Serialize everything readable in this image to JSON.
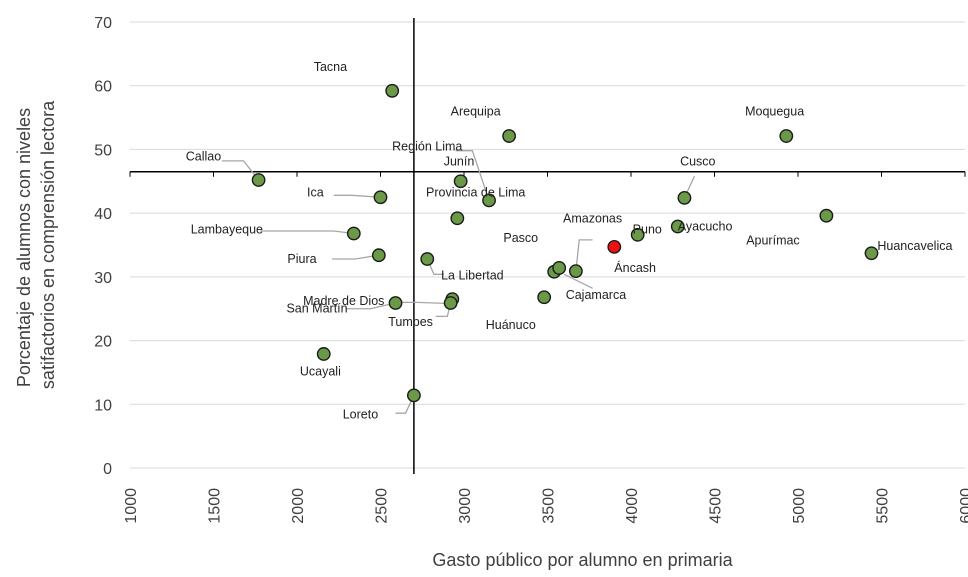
{
  "chart_data": {
    "type": "scatter",
    "xlabel": "Gasto público por alumno en primaria",
    "ylabel_lines": [
      "Porcentaje de alumnos con niveles",
      "satifactorios en comprensión lectora"
    ],
    "xlim": [
      1000,
      6000
    ],
    "ylim": [
      0,
      70
    ],
    "x_ticks": [
      "1000",
      "1500",
      "2000",
      "2500",
      "3000",
      "3500",
      "4000",
      "4500",
      "5000",
      "5500",
      "6000"
    ],
    "y_ticks": [
      "0",
      "10",
      "20",
      "30",
      "40",
      "50",
      "60",
      "70"
    ],
    "gridlines": "horizontal",
    "reference_lines": {
      "x": 2700,
      "y": 46.5
    },
    "colors": {
      "point": "#6a9a48",
      "highlight": "#ee1111",
      "outline": "#1a1a1a",
      "grid": "#d9d9d9",
      "reference": "#000000",
      "leader": "#a6a6a6"
    },
    "points": [
      {
        "label": "Tacna",
        "x": 2570,
        "y": 59.2,
        "lx": 2200,
        "ly": 62.3,
        "anchor": "middle"
      },
      {
        "label": "Arequipa",
        "x": 3270,
        "y": 52.1,
        "lx": 3070,
        "ly": 55.3,
        "anchor": "middle"
      },
      {
        "label": "Moquegua",
        "x": 4930,
        "y": 52.1,
        "lx": 4860,
        "ly": 55.3,
        "anchor": "middle"
      },
      {
        "label": "Callao",
        "x": 1770,
        "y": 45.2,
        "lx": 1440,
        "ly": 48.3,
        "anchor": "middle",
        "leader": [
          1550,
          48.2,
          1680,
          48.2,
          1770,
          45.2
        ]
      },
      {
        "label": "Región Lima",
        "x": 3150,
        "y": 42.0,
        "lx": 2780,
        "ly": 49.8,
        "anchor": "middle",
        "leader": [
          2950,
          49.8,
          3050,
          49.8,
          3150,
          42.0
        ]
      },
      {
        "label": "Junín",
        "x": 2980,
        "y": 45.0,
        "lx": 2970,
        "ly": 47.5,
        "anchor": "middle"
      },
      {
        "label": "Ica",
        "x": 2500,
        "y": 42.5,
        "lx": 2110,
        "ly": 42.6,
        "anchor": "middle",
        "leader": [
          2220,
          42.8,
          2330,
          42.8,
          2500,
          42.5
        ]
      },
      {
        "label": "Provincia de Lima",
        "x": 2960,
        "y": 39.2,
        "lx": 3070,
        "ly": 42.6,
        "anchor": "middle"
      },
      {
        "label": "Lambayeque",
        "x": 2340,
        "y": 36.8,
        "lx": 1580,
        "ly": 36.8,
        "anchor": "middle",
        "leader": [
          1780,
          37.2,
          2220,
          37.2,
          2340,
          36.8
        ]
      },
      {
        "label": "Piura",
        "x": 2490,
        "y": 33.4,
        "lx": 2030,
        "ly": 32.2,
        "anchor": "middle",
        "leader": [
          2210,
          32.8,
          2350,
          32.8,
          2490,
          33.4
        ]
      },
      {
        "label": "La Libertad",
        "x": 2780,
        "y": 32.8,
        "lx": 3050,
        "ly": 29.6,
        "anchor": "middle",
        "leader": [
          2880,
          30.4,
          2820,
          30.4,
          2780,
          32.8
        ]
      },
      {
        "label": "Madre de Dios",
        "x": 2930,
        "y": 26.5,
        "lx": 2280,
        "ly": 25.6,
        "anchor": "middle",
        "leader": [
          2570,
          26.0,
          2720,
          26.0,
          2930,
          25.8
        ]
      },
      {
        "label": "San Martín",
        "x": 2590,
        "y": 25.9,
        "lx": 2120,
        "ly": 24.4,
        "anchor": "middle",
        "leader": [
          2290,
          25.0,
          2440,
          25.0,
          2590,
          25.9
        ]
      },
      {
        "label": "Tumbes",
        "x": 2920,
        "y": 25.9,
        "lx": 2680,
        "ly": 22.3,
        "anchor": "middle",
        "leader": [
          2830,
          23.8,
          2900,
          23.8,
          2920,
          25.9
        ]
      },
      {
        "label": "Ucayali",
        "x": 2160,
        "y": 17.9,
        "lx": 2140,
        "ly": 14.5,
        "anchor": "middle"
      },
      {
        "label": "Loreto",
        "x": 2700,
        "y": 11.4,
        "lx": 2380,
        "ly": 7.8,
        "anchor": "middle",
        "leader": [
          2590,
          8.6,
          2650,
          8.6,
          2700,
          11.4
        ]
      },
      {
        "label": "Pasco",
        "x": 3540,
        "y": 30.8,
        "lx": 3340,
        "ly": 35.5,
        "anchor": "middle"
      },
      {
        "label": "Amazonas",
        "x": 3670,
        "y": 30.9,
        "lx": 3770,
        "ly": 38.5,
        "anchor": "middle",
        "leader": [
          3770,
          35.8,
          3690,
          35.8,
          3670,
          30.9
        ]
      },
      {
        "label": "Cajamarca",
        "x": 3570,
        "y": 31.4,
        "lx": 3790,
        "ly": 26.5,
        "anchor": "middle",
        "leader": [
          3600,
          30.4,
          3770,
          28.2,
          3770,
          28.2
        ]
      },
      {
        "label": "Huánuco",
        "x": 3480,
        "y": 26.8,
        "lx": 3280,
        "ly": 21.8,
        "anchor": "middle"
      },
      {
        "label": "Áncash",
        "x": 3900,
        "y": 34.7,
        "lx": 3900,
        "ly": 30.8,
        "anchor": "start",
        "highlight": true
      },
      {
        "label": "Puno",
        "x": 4040,
        "y": 36.6,
        "lx": 4010,
        "ly": 36.8,
        "anchor": "start"
      },
      {
        "label": "Ayacucho",
        "x": 4280,
        "y": 37.9,
        "lx": 4280,
        "ly": 37.3,
        "anchor": "start"
      },
      {
        "label": "Cusco",
        "x": 4320,
        "y": 42.4,
        "lx": 4400,
        "ly": 47.5,
        "anchor": "middle",
        "leader": [
          4380,
          45.8,
          4380,
          45.8,
          4320,
          42.4
        ]
      },
      {
        "label": "Apurímac",
        "x": 5170,
        "y": 39.6,
        "lx": 4850,
        "ly": 35.1,
        "anchor": "middle"
      },
      {
        "label": "Huancavelica",
        "x": 5440,
        "y": 33.7,
        "lx": 5700,
        "ly": 34.2,
        "anchor": "middle"
      }
    ]
  }
}
